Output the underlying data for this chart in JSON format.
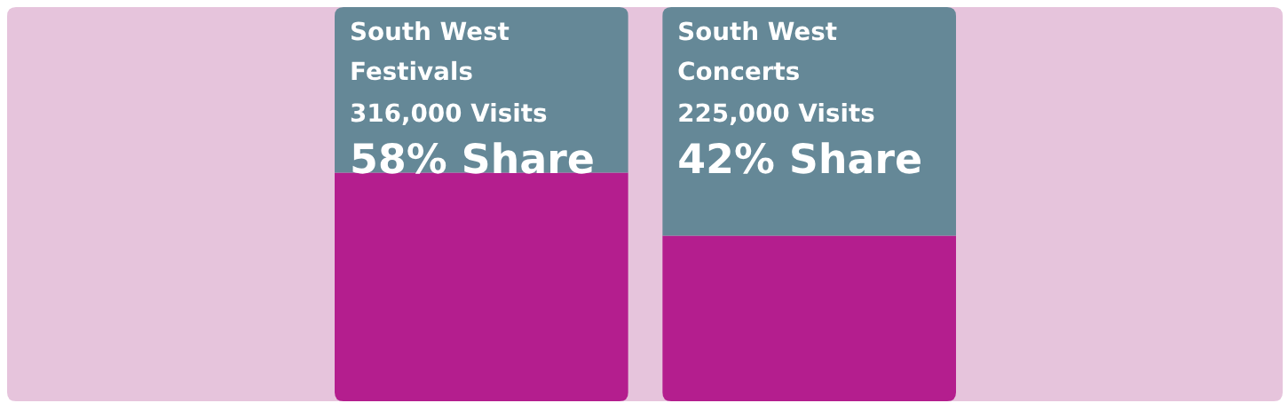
{
  "chart_data": {
    "type": "bar",
    "stacked": true,
    "categories": [
      "South West Festivals",
      "South West Concerts"
    ],
    "series": [
      {
        "color": "#b41e8e",
        "values": [
          58,
          42
        ],
        "value_labels": [
          "58% Share",
          "42% Share"
        ]
      },
      {
        "color": "#658897",
        "values": [
          42,
          58
        ]
      }
    ],
    "ylim": [
      0,
      100
    ],
    "annotations": [
      "316,000 Visits",
      "225,000 Visits"
    ],
    "tick_labels": "x"
  }
}
